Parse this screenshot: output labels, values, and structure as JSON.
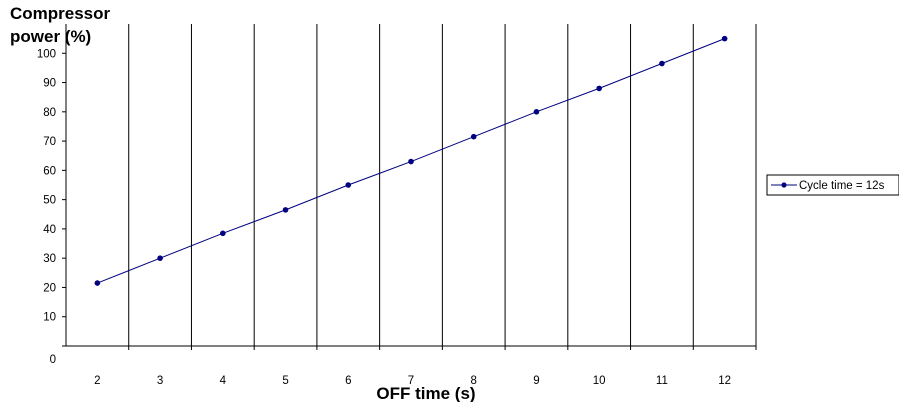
{
  "chart_data": {
    "type": "line",
    "ylabel_line1": "Compressor",
    "ylabel_line2": "power (%)",
    "xlabel": "OFF time (s)",
    "x": [
      2,
      3,
      4,
      5,
      6,
      7,
      8,
      9,
      10,
      11,
      12
    ],
    "series": [
      {
        "name": "Cycle time = 12s",
        "values": [
          21.5,
          30,
          38.5,
          46.5,
          55,
          63,
          71.5,
          80,
          88,
          96.5,
          105
        ],
        "color": "#000080"
      }
    ],
    "xlim": [
      1.5,
      12.5
    ],
    "ylim": [
      0,
      110
    ],
    "yticks": [
      0,
      10,
      20,
      30,
      40,
      50,
      60,
      70,
      80,
      90,
      100
    ],
    "xticks": [
      2,
      3,
      4,
      5,
      6,
      7,
      8,
      9,
      10,
      11,
      12
    ],
    "grid": "vertical",
    "legend_position": "right"
  }
}
